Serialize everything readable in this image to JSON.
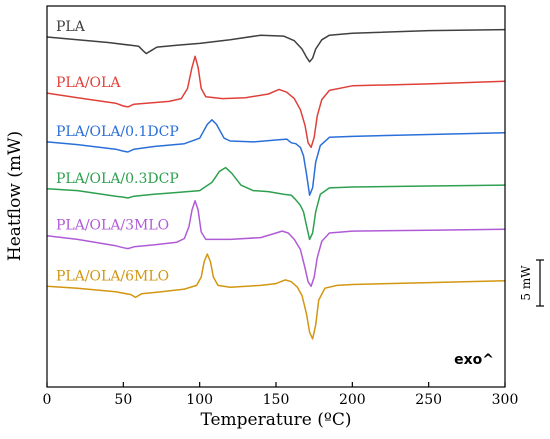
{
  "chart_data": {
    "type": "line",
    "xlabel": "Temperature (ºC)",
    "ylabel": "Heatflow (mW)",
    "xlim": [
      0,
      300
    ],
    "xticks": [
      "0",
      "50",
      "100",
      "150",
      "200",
      "250",
      "300"
    ],
    "y_ticks_shown": false,
    "grid": false,
    "legend": "labels placed directly above each curve on the left",
    "annotation_exo": "exo^",
    "scale_bar_label": "5 mW",
    "scale_bar_mW": 5,
    "series": [
      {
        "name": "PLA",
        "color": "#404040",
        "offset_mW": 0,
        "points": [
          [
            0,
            0
          ],
          [
            20,
            -0.3
          ],
          [
            40,
            -0.6
          ],
          [
            55,
            -0.9
          ],
          [
            60,
            -1.0
          ],
          [
            63,
            -1.5
          ],
          [
            65,
            -1.8
          ],
          [
            68,
            -1.5
          ],
          [
            72,
            -1.1
          ],
          [
            85,
            -0.9
          ],
          [
            100,
            -0.7
          ],
          [
            120,
            -0.3
          ],
          [
            140,
            0.2
          ],
          [
            155,
            0.1
          ],
          [
            162,
            -0.4
          ],
          [
            167,
            -1.3
          ],
          [
            170,
            -2.2
          ],
          [
            172,
            -2.7
          ],
          [
            174,
            -2.3
          ],
          [
            176,
            -1.3
          ],
          [
            180,
            -0.3
          ],
          [
            185,
            0.2
          ],
          [
            200,
            0.4
          ],
          [
            250,
            0.7
          ],
          [
            300,
            0.8
          ]
        ]
      },
      {
        "name": "PLA/OLA",
        "color": "#e0403a",
        "offset_mW": -6.1,
        "points": [
          [
            0,
            0
          ],
          [
            20,
            -0.5
          ],
          [
            45,
            -1.1
          ],
          [
            50,
            -1.4
          ],
          [
            53,
            -1.5
          ],
          [
            57,
            -1.2
          ],
          [
            65,
            -1.1
          ],
          [
            80,
            -0.9
          ],
          [
            88,
            -0.6
          ],
          [
            92,
            0.5
          ],
          [
            95,
            2.8
          ],
          [
            97,
            4.0
          ],
          [
            99,
            2.8
          ],
          [
            101,
            0.5
          ],
          [
            104,
            -0.4
          ],
          [
            115,
            -0.6
          ],
          [
            130,
            -0.5
          ],
          [
            145,
            -0.1
          ],
          [
            152,
            0.4
          ],
          [
            157,
            0.1
          ],
          [
            162,
            -0.6
          ],
          [
            166,
            -1.8
          ],
          [
            169,
            -3.5
          ],
          [
            171,
            -5.4
          ],
          [
            173,
            -5.9
          ],
          [
            175,
            -4.8
          ],
          [
            177,
            -2.5
          ],
          [
            180,
            -0.7
          ],
          [
            185,
            0.3
          ],
          [
            200,
            0.8
          ],
          [
            250,
            1.0
          ],
          [
            300,
            1.3
          ]
        ]
      },
      {
        "name": "PLA/OLA/0.1DCP",
        "color": "#2a6fd8",
        "offset_mW": -11.4,
        "points": [
          [
            0,
            0
          ],
          [
            20,
            -0.3
          ],
          [
            45,
            -0.8
          ],
          [
            50,
            -1.0
          ],
          [
            53,
            -1.1
          ],
          [
            57,
            -0.8
          ],
          [
            70,
            -0.5
          ],
          [
            90,
            -0.2
          ],
          [
            100,
            0.4
          ],
          [
            105,
            1.9
          ],
          [
            108,
            2.4
          ],
          [
            111,
            1.9
          ],
          [
            116,
            0.4
          ],
          [
            120,
            0.1
          ],
          [
            135,
            0.0
          ],
          [
            150,
            0.2
          ],
          [
            157,
            0.3
          ],
          [
            160,
            -0.1
          ],
          [
            163,
            -0.2
          ],
          [
            166,
            -0.6
          ],
          [
            168,
            -1.5
          ],
          [
            170,
            -3.5
          ],
          [
            172,
            -5.8
          ],
          [
            174,
            -5.0
          ],
          [
            176,
            -2.2
          ],
          [
            179,
            -0.4
          ],
          [
            185,
            0.5
          ],
          [
            200,
            0.6
          ],
          [
            250,
            0.8
          ],
          [
            300,
            1.0
          ]
        ]
      },
      {
        "name": "PLA/OLA/0.3DCP",
        "color": "#2ea04f",
        "offset_mW": -16.5,
        "points": [
          [
            0,
            0
          ],
          [
            20,
            -0.2
          ],
          [
            45,
            -0.8
          ],
          [
            50,
            -0.9
          ],
          [
            53,
            -1.0
          ],
          [
            57,
            -0.8
          ],
          [
            70,
            -0.6
          ],
          [
            85,
            -0.4
          ],
          [
            100,
            -0.2
          ],
          [
            108,
            0.7
          ],
          [
            113,
            1.9
          ],
          [
            117,
            2.3
          ],
          [
            121,
            1.7
          ],
          [
            127,
            0.4
          ],
          [
            135,
            -0.2
          ],
          [
            145,
            -0.3
          ],
          [
            155,
            -0.6
          ],
          [
            160,
            -0.7
          ],
          [
            163,
            -1.2
          ],
          [
            166,
            -1.8
          ],
          [
            168,
            -2.5
          ],
          [
            170,
            -4.0
          ],
          [
            172,
            -5.5
          ],
          [
            174,
            -4.8
          ],
          [
            176,
            -2.5
          ],
          [
            179,
            -0.6
          ],
          [
            185,
            0.1
          ],
          [
            200,
            0.2
          ],
          [
            250,
            0.3
          ],
          [
            300,
            0.4
          ]
        ]
      },
      {
        "name": "PLA/OLA/3MLO",
        "color": "#b05bd6",
        "offset_mW": -21.6,
        "points": [
          [
            0,
            0
          ],
          [
            20,
            -0.4
          ],
          [
            45,
            -1.1
          ],
          [
            50,
            -1.3
          ],
          [
            53,
            -1.4
          ],
          [
            57,
            -1.2
          ],
          [
            70,
            -1.0
          ],
          [
            85,
            -0.7
          ],
          [
            90,
            -0.3
          ],
          [
            93,
            1.0
          ],
          [
            95,
            2.8
          ],
          [
            97,
            3.8
          ],
          [
            99,
            2.8
          ],
          [
            101,
            0.4
          ],
          [
            104,
            -0.4
          ],
          [
            120,
            -0.4
          ],
          [
            140,
            -0.2
          ],
          [
            150,
            0.3
          ],
          [
            154,
            0.5
          ],
          [
            158,
            0.3
          ],
          [
            162,
            -0.4
          ],
          [
            166,
            -1.5
          ],
          [
            169,
            -3.5
          ],
          [
            171,
            -5.0
          ],
          [
            173,
            -5.5
          ],
          [
            175,
            -4.5
          ],
          [
            177,
            -2.4
          ],
          [
            180,
            -0.6
          ],
          [
            185,
            0.3
          ],
          [
            200,
            0.5
          ],
          [
            250,
            0.6
          ],
          [
            300,
            0.7
          ]
        ]
      },
      {
        "name": "PLA/OLA/6MLO",
        "color": "#d29612",
        "offset_mW": -27.1,
        "points": [
          [
            0,
            0
          ],
          [
            20,
            -0.2
          ],
          [
            45,
            -0.6
          ],
          [
            55,
            -0.9
          ],
          [
            58,
            -1.2
          ],
          [
            62,
            -0.8
          ],
          [
            75,
            -0.6
          ],
          [
            90,
            -0.3
          ],
          [
            98,
            0.1
          ],
          [
            101,
            1.0
          ],
          [
            103,
            2.7
          ],
          [
            105,
            3.5
          ],
          [
            107,
            2.7
          ],
          [
            109,
            1.0
          ],
          [
            112,
            0.1
          ],
          [
            120,
            -0.1
          ],
          [
            140,
            0.1
          ],
          [
            150,
            0.3
          ],
          [
            156,
            0.7
          ],
          [
            160,
            0.5
          ],
          [
            164,
            -0.1
          ],
          [
            167,
            -1.0
          ],
          [
            170,
            -3.0
          ],
          [
            172,
            -5.0
          ],
          [
            174,
            -5.7
          ],
          [
            176,
            -4.2
          ],
          [
            178,
            -1.5
          ],
          [
            182,
            -0.2
          ],
          [
            190,
            0.1
          ],
          [
            200,
            0.2
          ],
          [
            250,
            0.4
          ],
          [
            300,
            0.6
          ]
        ]
      }
    ]
  }
}
